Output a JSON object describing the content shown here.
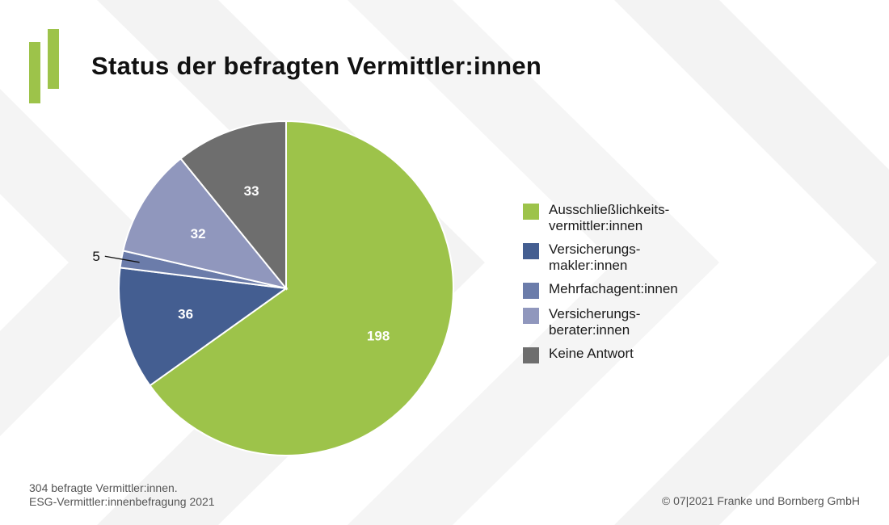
{
  "title": "Status der befragten Vermittler:innen",
  "footer": {
    "note_line1": "304 befragte Vermittler:innen.",
    "note_line2": "ESG-Vermittler:innenbefragung 2021",
    "copyright": "© 07|2021 Franke und Bornberg GmbH"
  },
  "colors": {
    "accent": "#9dc34a",
    "background_chevrons": "#f2f2f2"
  },
  "chart_data": {
    "type": "pie",
    "legend_position": "right",
    "start_angle": "12 o'clock, clockwise",
    "slices": [
      {
        "label": "Ausschließlichkeits-\nvermittler:innen",
        "value": 198,
        "color": "#9dc34a"
      },
      {
        "label": "Versicherungs-\nmakler:innen",
        "value": 36,
        "color": "#445e91"
      },
      {
        "label": "Mehrfachagent:innen",
        "value": 5,
        "color": "#6b7caa"
      },
      {
        "label": "Versicherungs-\nberater:innen",
        "value": 32,
        "color": "#9097bd"
      },
      {
        "label": "Keine Antwort",
        "value": 33,
        "color": "#6e6e6e"
      }
    ]
  }
}
